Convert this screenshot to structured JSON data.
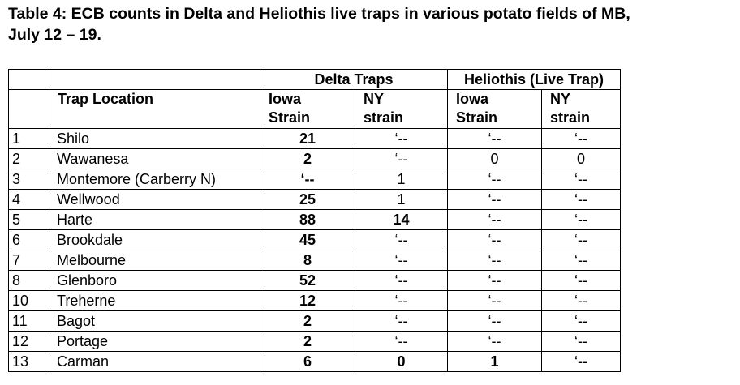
{
  "title": {
    "lines": [
      "Table 4: ECB counts in Delta and Heliothis live traps in various potato fields of MB,",
      "July 12 – 19."
    ]
  },
  "table": {
    "groups": [
      "Delta Traps",
      "Heliothis (Live Trap)"
    ],
    "columns": [
      [
        "Trap Location"
      ],
      [
        "Iowa",
        "Strain"
      ],
      [
        "NY",
        "strain"
      ],
      [
        "Iowa",
        "Strain"
      ],
      [
        "NY",
        "strain"
      ]
    ],
    "rows": [
      [
        "1",
        "Shilo",
        "21",
        "‘--",
        "‘--",
        "‘--"
      ],
      [
        "2",
        "Wawanesa",
        "2",
        "‘--",
        "0",
        "0"
      ],
      [
        "3",
        "Montemore (Carberry N)",
        "‘--",
        "1",
        "‘--",
        "‘--"
      ],
      [
        "4",
        "Wellwood",
        "25",
        "1",
        "‘--",
        "‘--"
      ],
      [
        "5",
        "Harte",
        "88",
        "14",
        "‘--",
        "‘--"
      ],
      [
        "6",
        "Brookdale",
        "45",
        "‘--",
        "‘--",
        "‘--"
      ],
      [
        "7",
        "Melbourne",
        "8",
        "‘--",
        "‘--",
        "‘--"
      ],
      [
        "8",
        "Glenboro",
        "52",
        "‘--",
        "‘--",
        "‘--"
      ],
      [
        "10",
        "Treherne",
        "12",
        "‘--",
        "‘--",
        "‘--"
      ],
      [
        "11",
        "Bagot",
        "2",
        "‘--",
        "‘--",
        "‘--"
      ],
      [
        "12",
        "Portage",
        "2",
        "‘--",
        "‘--",
        "‘--"
      ],
      [
        "13",
        "Carman",
        "6",
        "0",
        "1",
        "‘--"
      ]
    ]
  }
}
